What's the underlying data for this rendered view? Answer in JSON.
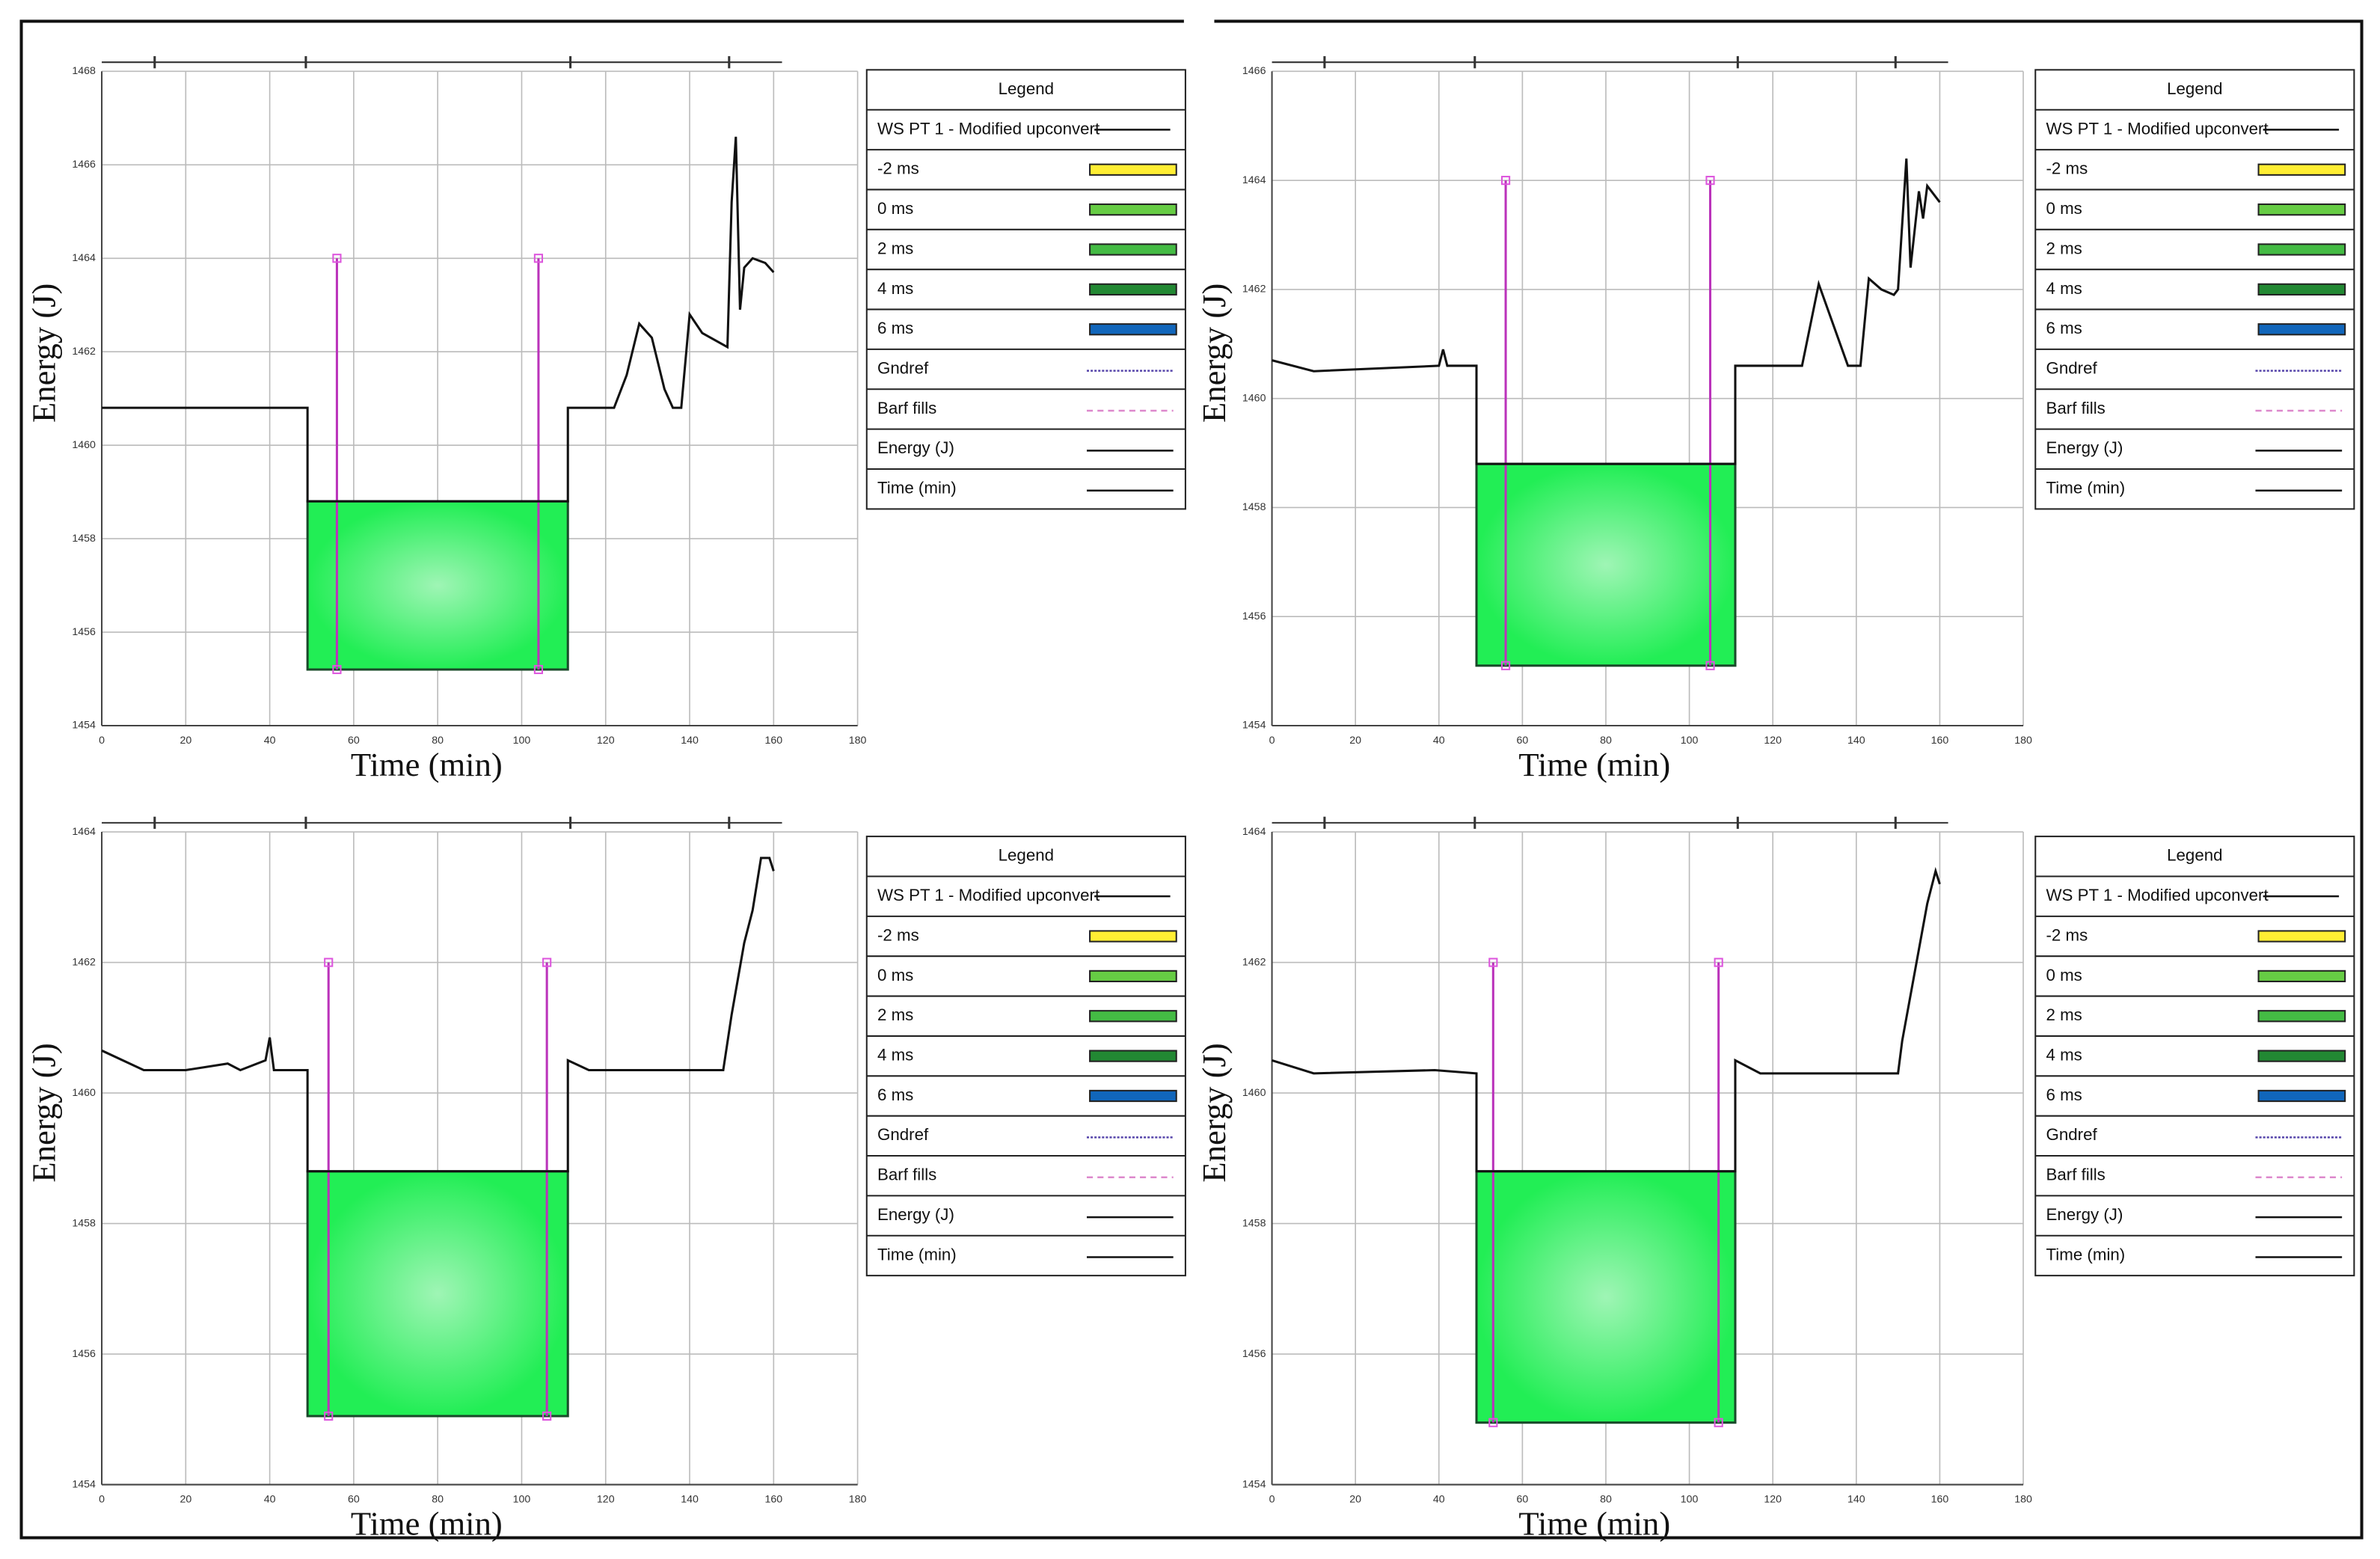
{
  "chart_data": [
    {
      "type": "line",
      "xlabel": "Time (min)",
      "ylabel": "Energy (J)",
      "xlim": [
        0,
        180
      ],
      "xticks": [
        0,
        20,
        40,
        60,
        80,
        100,
        120,
        140,
        160,
        180
      ],
      "ylim": [
        1454,
        1468
      ],
      "yticks": [
        1454,
        1456,
        1458,
        1460,
        1462,
        1464,
        1466,
        1468
      ],
      "grid": true,
      "series": [
        {
          "name": "WS PT 1 - Modified upconvert",
          "color": "#111111",
          "x": [
            0,
            10,
            15,
            49,
            49,
            111,
            111,
            122,
            125,
            128,
            131,
            134,
            136,
            138,
            140,
            143,
            149,
            150,
            151,
            152,
            153,
            155,
            158,
            160
          ],
          "values": [
            1460.8,
            1460.8,
            1460.8,
            1460.8,
            1458.8,
            1458.8,
            1460.8,
            1460.8,
            1461.5,
            1462.6,
            1462.3,
            1461.2,
            1460.8,
            1460.8,
            1462.8,
            1462.4,
            1462.1,
            1465.2,
            1466.6,
            1462.9,
            1463.8,
            1464.0,
            1463.9,
            1463.7
          ]
        }
      ],
      "band": {
        "x": [
          49,
          111
        ],
        "y": [
          1455.2,
          1458.8
        ],
        "color": "#22ee55"
      },
      "pulses": {
        "x": [
          56,
          104
        ],
        "top": 1464,
        "bottom": 1455.2,
        "color": "#bb33bb"
      },
      "legend": {
        "title": "Legend",
        "entries": [
          {
            "name": "-2 ms",
            "color": "#ffee33",
            "style": "box"
          },
          {
            "name": "0 ms",
            "color": "#66cc44",
            "style": "box"
          },
          {
            "name": "2 ms",
            "color": "#44bb44",
            "style": "box"
          },
          {
            "name": "4 ms",
            "color": "#228833",
            "style": "box"
          },
          {
            "name": "6 ms",
            "color": "#1166bb",
            "style": "box"
          },
          {
            "name": "Gndref",
            "color": "#5544aa",
            "style": "dotted"
          },
          {
            "name": "Barf fills",
            "color": "#dd88cc",
            "style": "dashed"
          },
          {
            "name": "Energy (J)",
            "color": "#111111",
            "style": "line"
          },
          {
            "name": "Time (min)",
            "color": "#111111",
            "style": "line"
          }
        ]
      }
    },
    {
      "type": "line",
      "xlabel": "Time (min)",
      "ylabel": "Energy (J)",
      "xlim": [
        0,
        180
      ],
      "xticks": [
        0,
        20,
        40,
        60,
        80,
        100,
        120,
        140,
        160,
        180
      ],
      "ylim": [
        1454,
        1466
      ],
      "yticks": [
        1454,
        1456,
        1458,
        1460,
        1462,
        1464,
        1466
      ],
      "grid": true,
      "series": [
        {
          "name": "WS PT 1 - Modified upconvert",
          "color": "#111111",
          "x": [
            0,
            10,
            40,
            41,
            42,
            49,
            49,
            111,
            111,
            127,
            131,
            138,
            141,
            143,
            146,
            149,
            150,
            152,
            153,
            155,
            156,
            157,
            160
          ],
          "values": [
            1460.7,
            1460.5,
            1460.6,
            1460.9,
            1460.6,
            1460.6,
            1458.8,
            1458.8,
            1460.6,
            1460.6,
            1462.1,
            1460.6,
            1460.6,
            1462.2,
            1462.0,
            1461.9,
            1462.0,
            1464.4,
            1462.4,
            1463.8,
            1463.3,
            1463.9,
            1463.6
          ]
        }
      ],
      "band": {
        "x": [
          49,
          111
        ],
        "y": [
          1455.1,
          1458.8
        ],
        "color": "#22ee55"
      },
      "pulses": {
        "x": [
          56,
          105
        ],
        "top": 1464,
        "bottom": 1455.1,
        "color": "#bb33bb"
      },
      "legend": {
        "title": "Legend",
        "entries": [
          {
            "name": "-2 ms",
            "color": "#ffee33",
            "style": "box"
          },
          {
            "name": "0 ms",
            "color": "#66cc44",
            "style": "box"
          },
          {
            "name": "2 ms",
            "color": "#44bb44",
            "style": "box"
          },
          {
            "name": "4 ms",
            "color": "#228833",
            "style": "box"
          },
          {
            "name": "6 ms",
            "color": "#1166bb",
            "style": "box"
          },
          {
            "name": "Gndref",
            "color": "#5544aa",
            "style": "dotted"
          },
          {
            "name": "Barf fills",
            "color": "#dd88cc",
            "style": "dashed"
          },
          {
            "name": "Energy (J)",
            "color": "#111111",
            "style": "line"
          },
          {
            "name": "Time (min)",
            "color": "#111111",
            "style": "line"
          }
        ]
      }
    },
    {
      "type": "line",
      "xlabel": "Time (min)",
      "ylabel": "Energy (J)",
      "xlim": [
        0,
        180
      ],
      "xticks": [
        0,
        20,
        40,
        60,
        80,
        100,
        120,
        140,
        160,
        180
      ],
      "ylim": [
        1454,
        1464
      ],
      "yticks": [
        1454,
        1456,
        1458,
        1460,
        1462,
        1464
      ],
      "grid": true,
      "series": [
        {
          "name": "WS PT 1 - Modified upconvert",
          "color": "#111111",
          "x": [
            0,
            10,
            20,
            30,
            33,
            39,
            40,
            41,
            49,
            49,
            111,
            111,
            116,
            148,
            150,
            153,
            155,
            157,
            159,
            160
          ],
          "values": [
            1460.65,
            1460.35,
            1460.35,
            1460.45,
            1460.35,
            1460.5,
            1460.85,
            1460.35,
            1460.35,
            1458.8,
            1458.8,
            1460.5,
            1460.35,
            1460.35,
            1461.2,
            1462.3,
            1462.8,
            1463.6,
            1463.6,
            1463.4
          ]
        }
      ],
      "band": {
        "x": [
          49,
          111
        ],
        "y": [
          1455.05,
          1458.8
        ],
        "color": "#22ee55"
      },
      "pulses": {
        "x": [
          54,
          106
        ],
        "top": 1462,
        "bottom": 1455.05,
        "color": "#bb33bb"
      },
      "legend": {
        "title": "Legend",
        "entries": [
          {
            "name": "-2 ms",
            "color": "#ffee33",
            "style": "box"
          },
          {
            "name": "0 ms",
            "color": "#66cc44",
            "style": "box"
          },
          {
            "name": "2 ms",
            "color": "#44bb44",
            "style": "box"
          },
          {
            "name": "4 ms",
            "color": "#228833",
            "style": "box"
          },
          {
            "name": "6 ms",
            "color": "#1166bb",
            "style": "box"
          },
          {
            "name": "Gndref",
            "color": "#5544aa",
            "style": "dotted"
          },
          {
            "name": "Barf fills",
            "color": "#dd88cc",
            "style": "dashed"
          },
          {
            "name": "Energy (J)",
            "color": "#111111",
            "style": "line"
          },
          {
            "name": "Time (min)",
            "color": "#111111",
            "style": "line"
          }
        ]
      }
    },
    {
      "type": "line",
      "xlabel": "Time (min)",
      "ylabel": "Energy (J)",
      "xlim": [
        0,
        180
      ],
      "xticks": [
        0,
        20,
        40,
        60,
        80,
        100,
        120,
        140,
        160,
        180
      ],
      "ylim": [
        1454,
        1464
      ],
      "yticks": [
        1454,
        1456,
        1458,
        1460,
        1462,
        1464
      ],
      "grid": true,
      "series": [
        {
          "name": "WS PT 1 - Modified upconvert",
          "color": "#111111",
          "x": [
            0,
            10,
            39,
            49,
            49,
            111,
            111,
            117,
            150,
            151,
            155,
            157,
            159,
            160
          ],
          "values": [
            1460.5,
            1460.3,
            1460.35,
            1460.3,
            1458.8,
            1458.8,
            1460.5,
            1460.3,
            1460.3,
            1460.8,
            1462.2,
            1462.9,
            1463.4,
            1463.2
          ]
        }
      ],
      "band": {
        "x": [
          49,
          111
        ],
        "y": [
          1454.95,
          1458.8
        ],
        "color": "#22ee55"
      },
      "pulses": {
        "x": [
          53,
          107
        ],
        "top": 1462,
        "bottom": 1454.95,
        "color": "#bb33bb"
      },
      "legend": {
        "title": "Legend",
        "entries": [
          {
            "name": "-2 ms",
            "color": "#ffee33",
            "style": "box"
          },
          {
            "name": "0 ms",
            "color": "#66cc44",
            "style": "box"
          },
          {
            "name": "2 ms",
            "color": "#44bb44",
            "style": "box"
          },
          {
            "name": "4 ms",
            "color": "#228833",
            "style": "box"
          },
          {
            "name": "6 ms",
            "color": "#1166bb",
            "style": "box"
          },
          {
            "name": "Gndref",
            "color": "#5544aa",
            "style": "dotted"
          },
          {
            "name": "Barf fills",
            "color": "#dd88cc",
            "style": "dashed"
          },
          {
            "name": "Energy (J)",
            "color": "#111111",
            "style": "line"
          },
          {
            "name": "Time (min)",
            "color": "#111111",
            "style": "line"
          }
        ]
      }
    }
  ]
}
